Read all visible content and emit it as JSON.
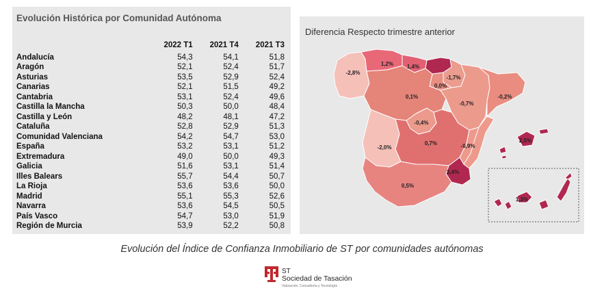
{
  "table": {
    "title": "Evolución Histórica por Comunidad Autónoma",
    "columns": [
      "2022 T1",
      "2021 T4",
      "2021 T3"
    ],
    "rows": [
      {
        "region": "Andalucía",
        "values": [
          "54,3",
          "54,1",
          "51,8"
        ]
      },
      {
        "region": "Aragón",
        "values": [
          "52,1",
          "52,4",
          "51,7"
        ]
      },
      {
        "region": "Asturias",
        "values": [
          "53,5",
          "52,9",
          "52,4"
        ]
      },
      {
        "region": "Canarias",
        "values": [
          "52,1",
          "51,5",
          "49,2"
        ]
      },
      {
        "region": "Cantabria",
        "values": [
          "53,1",
          "52,4",
          "49,6"
        ]
      },
      {
        "region": "Castilla la Mancha",
        "values": [
          "50,3",
          "50,0",
          "48,4"
        ]
      },
      {
        "region": "Castilla y León",
        "values": [
          "48,2",
          "48,1",
          "47,2"
        ]
      },
      {
        "region": "Cataluña",
        "values": [
          "52,8",
          "52,9",
          "51,3"
        ]
      },
      {
        "region": "Comunidad Valenciana",
        "values": [
          "54,2",
          "54,7",
          "53,0"
        ]
      },
      {
        "region": "España",
        "values": [
          "53,2",
          "53,1",
          "51,2"
        ]
      },
      {
        "region": "Extremadura",
        "values": [
          "49,0",
          "50,0",
          "49,3"
        ]
      },
      {
        "region": "Galicia",
        "values": [
          "51,6",
          "53,1",
          "51,4"
        ]
      },
      {
        "region": "Illes Balears",
        "values": [
          "55,7",
          "54,4",
          "50,7"
        ]
      },
      {
        "region": "La Rioja",
        "values": [
          "53,6",
          "53,6",
          "50,0"
        ]
      },
      {
        "region": "Madrid",
        "values": [
          "55,1",
          "55,3",
          "52,6"
        ]
      },
      {
        "region": "Navarra",
        "values": [
          "53,6",
          "54,5",
          "50,5"
        ]
      },
      {
        "region": "País Vasco",
        "values": [
          "54,7",
          "53,0",
          "51,9"
        ]
      },
      {
        "region": "Región de Murcia",
        "values": [
          "53,9",
          "52,2",
          "50,8"
        ]
      }
    ]
  },
  "map": {
    "title": "Diferencia Respecto trimestre anterior",
    "regions": [
      {
        "id": "galicia",
        "label": "-2,8%",
        "color": "#f5c0b8"
      },
      {
        "id": "asturias",
        "label": "1,2%",
        "color": "#e86878"
      },
      {
        "id": "cantabria",
        "label": "1,4%",
        "color": "#e26072"
      },
      {
        "id": "pais-vasco",
        "label": "",
        "color": "#b02850"
      },
      {
        "id": "navarra",
        "label": "-1,7%",
        "color": "#ea9c8e"
      },
      {
        "id": "la-rioja",
        "label": "0,0%",
        "color": "#e88e82"
      },
      {
        "id": "castilla-y-leon",
        "label": "0,1%",
        "color": "#e58479"
      },
      {
        "id": "aragon",
        "label": "-0,7%",
        "color": "#ec9a8c"
      },
      {
        "id": "cataluna",
        "label": "-0,2%",
        "color": "#ea8c80"
      },
      {
        "id": "madrid",
        "label": "-0,4%",
        "color": "#ec9a8c"
      },
      {
        "id": "castilla-la-mancha",
        "label": "0,7%",
        "color": "#e07070"
      },
      {
        "id": "extremadura",
        "label": "-2,0%",
        "color": "#f5c0b8"
      },
      {
        "id": "valenciana",
        "label": "-0,9%",
        "color": "#ed9a8c"
      },
      {
        "id": "andalucia",
        "label": "0,5%",
        "color": "#e88480"
      },
      {
        "id": "murcia",
        "label": "3,4%",
        "color": "#b02850"
      },
      {
        "id": "baleares",
        "label": "2,5%",
        "color": "#b02850"
      },
      {
        "id": "canarias",
        "label": "1,3%",
        "color": "#b02850"
      }
    ]
  },
  "caption": "Evolución del Índice de Confianza Inmobiliario de ST por comunidades autónomas",
  "logo": {
    "abbr": "ST",
    "name": "Sociedad de Tasación",
    "tagline": "Valoración, Consultoría y Tecnología",
    "color": "#c0272d"
  }
}
